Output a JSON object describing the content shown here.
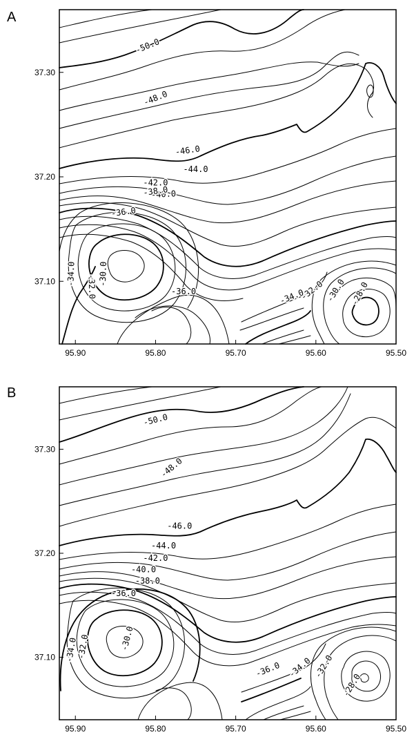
{
  "chart_data": [
    {
      "panel": "A",
      "type": "contour",
      "x_ticks": [
        "95.90",
        "95.80",
        "95.70",
        "95.60",
        "95.50"
      ],
      "y_ticks": [
        "37.30",
        "37.20",
        "37.10"
      ],
      "xlim": [
        95.92,
        95.5
      ],
      "ylim": [
        37.04,
        37.36
      ],
      "grid": false,
      "contour_labels": [
        {
          "text": "-50.0",
          "x": 95.81,
          "y": 37.325,
          "angle": -22
        },
        {
          "text": "-48.0",
          "x": 95.8,
          "y": 37.275,
          "angle": -22
        },
        {
          "text": "-46.0",
          "x": 95.76,
          "y": 37.225,
          "angle": -8
        },
        {
          "text": "-44.0",
          "x": 95.75,
          "y": 37.207,
          "angle": 0
        },
        {
          "text": "-42.0",
          "x": 95.8,
          "y": 37.194,
          "angle": 0
        },
        {
          "text": "-40.0",
          "x": 95.79,
          "y": 37.183,
          "angle": -3
        },
        {
          "text": "-38.0",
          "x": 95.8,
          "y": 37.186,
          "angle": -8
        },
        {
          "text": "-36.0",
          "x": 95.84,
          "y": 37.166,
          "angle": -8
        },
        {
          "text": "-34.0",
          "x": 95.905,
          "y": 37.107,
          "angle": -88
        },
        {
          "text": "-32.0",
          "x": 95.88,
          "y": 37.095,
          "angle": 88
        },
        {
          "text": "-30.0",
          "x": 95.865,
          "y": 37.107,
          "angle": -88
        },
        {
          "text": "-36.0",
          "x": 95.765,
          "y": 37.09,
          "angle": 0
        },
        {
          "text": "-34.0",
          "x": 95.63,
          "y": 37.085,
          "angle": -22
        },
        {
          "text": "-32.0",
          "x": 95.605,
          "y": 37.091,
          "angle": -38
        },
        {
          "text": "-30.0",
          "x": 95.575,
          "y": 37.091,
          "angle": -58
        },
        {
          "text": "-28.0",
          "x": 95.545,
          "y": 37.088,
          "angle": -62
        }
      ]
    },
    {
      "panel": "B",
      "type": "contour",
      "x_ticks": [
        "95.90",
        "95.80",
        "95.70",
        "95.60",
        "95.50"
      ],
      "y_ticks": [
        "37.30",
        "37.20",
        "37.10"
      ],
      "xlim": [
        95.92,
        95.5
      ],
      "ylim": [
        37.04,
        37.36
      ],
      "grid": false,
      "contour_labels": [
        {
          "text": "-50.0",
          "x": 95.8,
          "y": 37.328,
          "angle": -14
        },
        {
          "text": "-48.0",
          "x": 95.78,
          "y": 37.282,
          "angle": -40
        },
        {
          "text": "-46.0",
          "x": 95.77,
          "y": 37.226,
          "angle": 0
        },
        {
          "text": "-44.0",
          "x": 95.79,
          "y": 37.207,
          "angle": 0
        },
        {
          "text": "-42.0",
          "x": 95.8,
          "y": 37.195,
          "angle": 0
        },
        {
          "text": "-40.0",
          "x": 95.815,
          "y": 37.184,
          "angle": 0
        },
        {
          "text": "-38.0",
          "x": 95.81,
          "y": 37.173,
          "angle": 0
        },
        {
          "text": "-36.0",
          "x": 95.84,
          "y": 37.161,
          "angle": 0
        },
        {
          "text": "-34.0",
          "x": 95.905,
          "y": 37.107,
          "angle": -80
        },
        {
          "text": "-32.0",
          "x": 95.89,
          "y": 37.11,
          "angle": -80
        },
        {
          "text": "-30.0",
          "x": 95.835,
          "y": 37.118,
          "angle": -75
        },
        {
          "text": "-36.0",
          "x": 95.66,
          "y": 37.088,
          "angle": -22
        },
        {
          "text": "-34.0",
          "x": 95.62,
          "y": 37.09,
          "angle": -40
        },
        {
          "text": "-32.0",
          "x": 95.59,
          "y": 37.091,
          "angle": -58
        },
        {
          "text": "-28.0",
          "x": 95.555,
          "y": 37.073,
          "angle": -58
        }
      ]
    }
  ],
  "panels": {
    "a_label": "A",
    "b_label": "B"
  }
}
